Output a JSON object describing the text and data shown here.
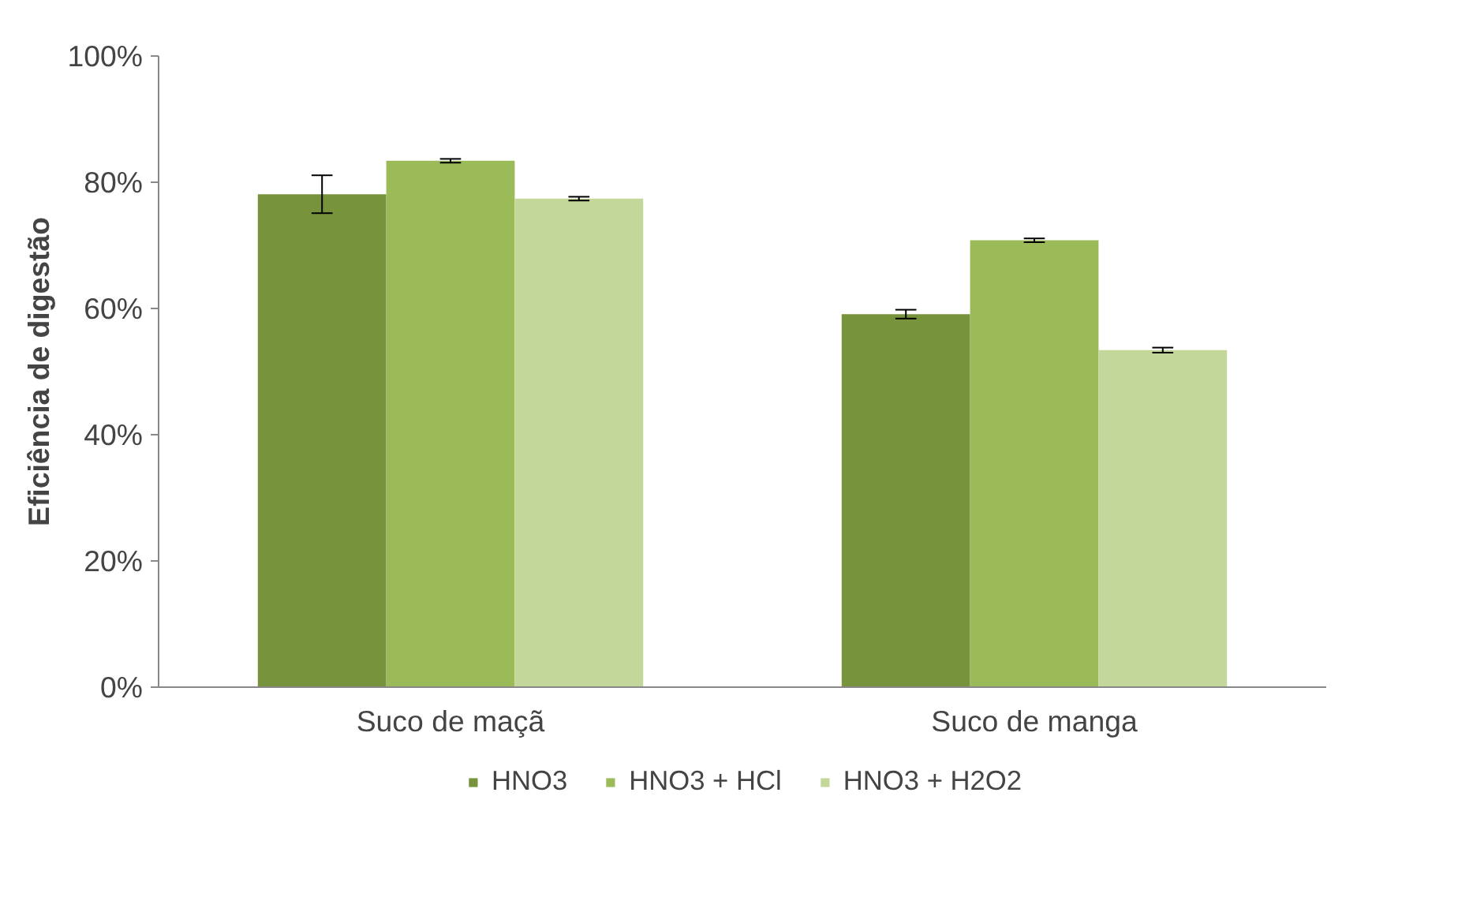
{
  "chart_data": {
    "type": "bar",
    "ylabel": "Eficiência de digestão",
    "categories": [
      "Suco de maçã",
      "Suco de manga"
    ],
    "series": [
      {
        "name": "HNO3",
        "color": "#77933c",
        "values": [
          78.1,
          59.1
        ],
        "errors": [
          3,
          0.7
        ]
      },
      {
        "name": "HNO3 + HCl",
        "color": "#9bbb59",
        "values": [
          83.4,
          70.8
        ],
        "errors": [
          0.3,
          0.3
        ]
      },
      {
        "name": "HNO3 + H2O2",
        "color": "#c4d79b",
        "values": [
          77.4,
          53.4
        ],
        "errors": [
          0.3,
          0.4
        ]
      }
    ],
    "ylim": [
      0,
      100
    ],
    "yticks": [
      {
        "value": 0,
        "label": "0%"
      },
      {
        "value": 20,
        "label": "20%"
      },
      {
        "value": 40,
        "label": "40%"
      },
      {
        "value": 60,
        "label": "60%"
      },
      {
        "value": 80,
        "label": "80%"
      },
      {
        "value": 100,
        "label": "100%"
      }
    ],
    "grid": false,
    "legend": "bottom"
  }
}
